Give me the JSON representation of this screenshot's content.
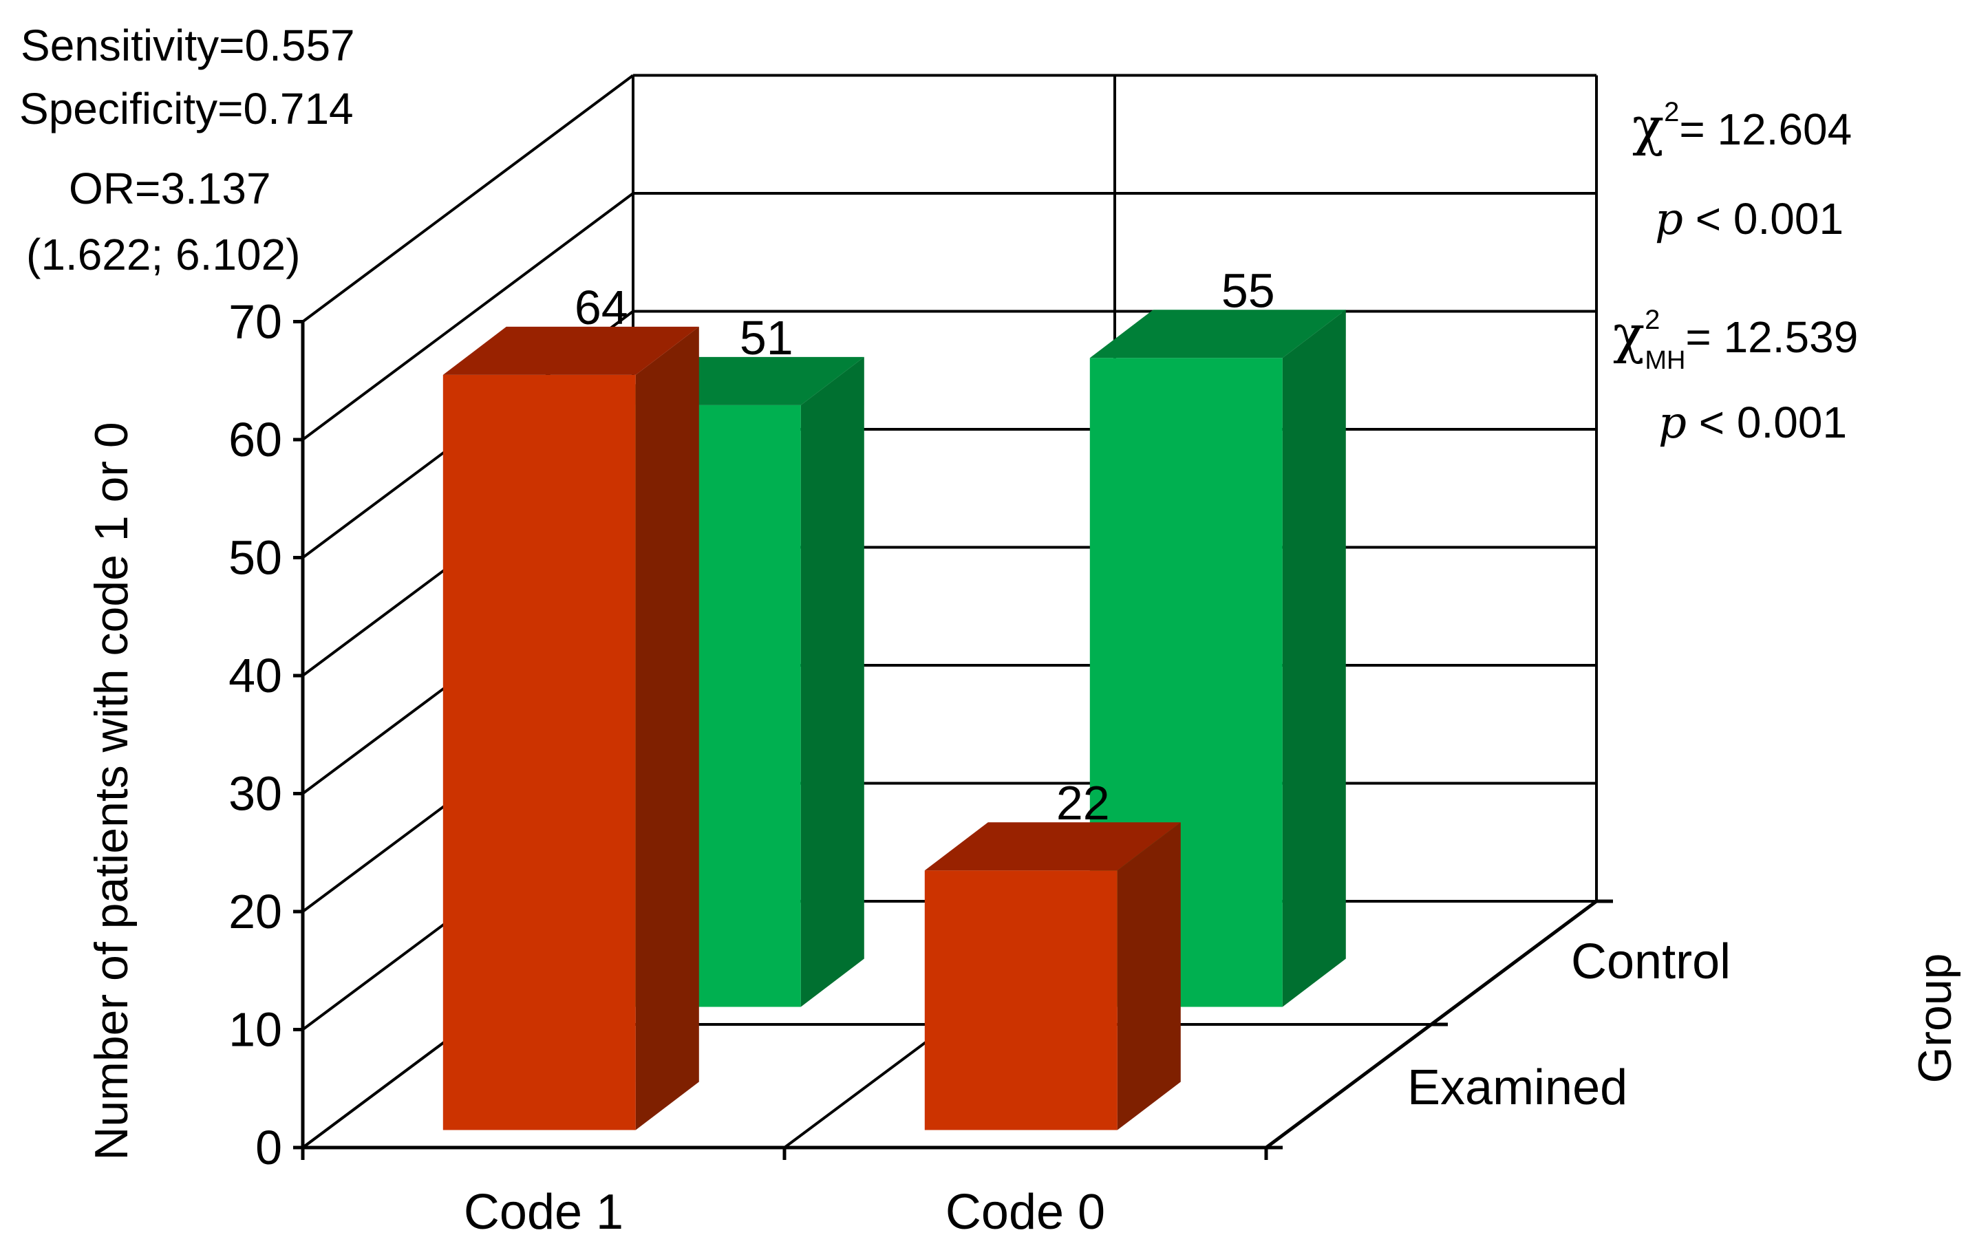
{
  "stats_left": {
    "sensitivity": "Sensitivity=0.557",
    "specificity": "Specificity=0.714",
    "or": "OR=3.137",
    "ci": "(1.622; 6.102)"
  },
  "stats_right": {
    "chi_symbol": "χ",
    "chi_sup": "2",
    "chi_value": "= 12.604",
    "p1_symbol": "p",
    "p1_value": " < 0.001",
    "chimh_symbol": "χ",
    "chimh_sup": "2",
    "chimh_sub": "MH",
    "chimh_value": "=  12.539",
    "p2_symbol": "p",
    "p2_value": " < 0.001"
  },
  "chart_data": {
    "type": "bar",
    "subtype": "3d-grouped",
    "categories": [
      "Code 1",
      "Code 0"
    ],
    "series": [
      {
        "name": "Examined",
        "values": [
          64,
          22
        ],
        "color": "#cc3300",
        "side_color": "#7f2000",
        "top_color": "#992200"
      },
      {
        "name": "Control",
        "values": [
          51,
          55
        ],
        "color": "#00b050",
        "side_color": "#007030",
        "top_color": "#008038"
      }
    ],
    "ylabel": "Number of patients with code 1 or 0",
    "zlabel": "Group",
    "ylim": [
      0,
      70
    ],
    "yticks": [
      0,
      10,
      20,
      30,
      40,
      50,
      60,
      70
    ],
    "grid": true
  }
}
